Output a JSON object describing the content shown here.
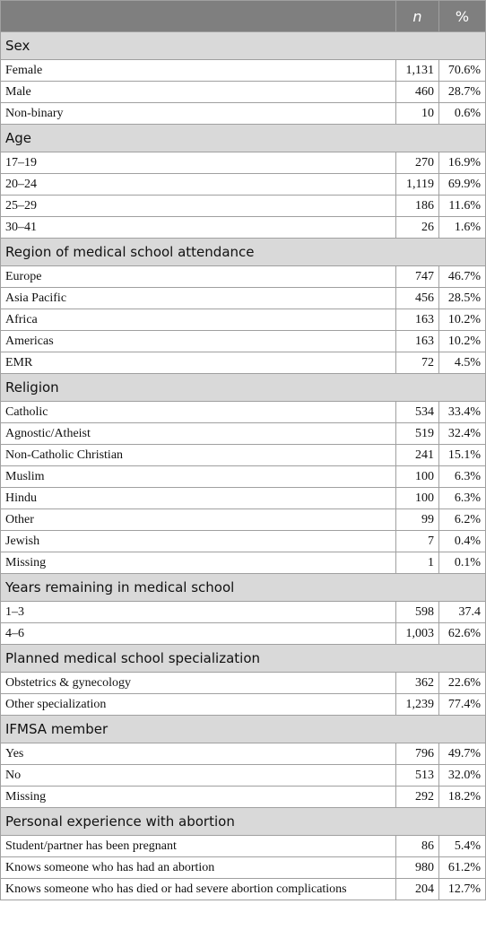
{
  "header": {
    "columns": [
      "n",
      "%"
    ]
  },
  "sections": [
    {
      "title": "Sex",
      "rows": [
        {
          "label": "Female",
          "n": "1,131",
          "pct": "70.6%"
        },
        {
          "label": "Male",
          "n": "460",
          "pct": "28.7%"
        },
        {
          "label": "Non-binary",
          "n": "10",
          "pct": "0.6%"
        }
      ]
    },
    {
      "title": "Age",
      "rows": [
        {
          "label": "17–19",
          "n": "270",
          "pct": "16.9%"
        },
        {
          "label": "20–24",
          "n": "1,119",
          "pct": "69.9%"
        },
        {
          "label": "25–29",
          "n": "186",
          "pct": "11.6%"
        },
        {
          "label": "30–41",
          "n": "26",
          "pct": "1.6%"
        }
      ]
    },
    {
      "title": "Region of medical school attendance",
      "rows": [
        {
          "label": "Europe",
          "n": "747",
          "pct": "46.7%"
        },
        {
          "label": "Asia Pacific",
          "n": "456",
          "pct": "28.5%"
        },
        {
          "label": "Africa",
          "n": "163",
          "pct": "10.2%"
        },
        {
          "label": "Americas",
          "n": "163",
          "pct": "10.2%"
        },
        {
          "label": "EMR",
          "n": "72",
          "pct": "4.5%"
        }
      ]
    },
    {
      "title": "Religion",
      "rows": [
        {
          "label": "Catholic",
          "n": "534",
          "pct": "33.4%"
        },
        {
          "label": "Agnostic/Atheist",
          "n": "519",
          "pct": "32.4%"
        },
        {
          "label": "Non-Catholic Christian",
          "n": "241",
          "pct": "15.1%"
        },
        {
          "label": "Muslim",
          "n": "100",
          "pct": "6.3%"
        },
        {
          "label": "Hindu",
          "n": "100",
          "pct": "6.3%"
        },
        {
          "label": "Other",
          "n": "99",
          "pct": "6.2%"
        },
        {
          "label": "Jewish",
          "n": "7",
          "pct": "0.4%"
        },
        {
          "label": "Missing",
          "n": "1",
          "pct": "0.1%"
        }
      ]
    },
    {
      "title": "Years remaining in medical school",
      "rows": [
        {
          "label": "1–3",
          "n": "598",
          "pct": "37.4"
        },
        {
          "label": "4–6",
          "n": "1,003",
          "pct": "62.6%"
        }
      ]
    },
    {
      "title": "Planned medical school specialization",
      "rows": [
        {
          "label": "Obstetrics & gynecology",
          "n": "362",
          "pct": "22.6%"
        },
        {
          "label": "Other specialization",
          "n": "1,239",
          "pct": "77.4%"
        }
      ]
    },
    {
      "title": "IFMSA member",
      "rows": [
        {
          "label": "Yes",
          "n": "796",
          "pct": "49.7%"
        },
        {
          "label": "No",
          "n": "513",
          "pct": "32.0%"
        },
        {
          "label": "Missing",
          "n": "292",
          "pct": "18.2%"
        }
      ]
    },
    {
      "title": "Personal experience with abortion",
      "rows": [
        {
          "label": "Student/partner has been pregnant",
          "n": "86",
          "pct": "5.4%"
        },
        {
          "label": "Knows someone who has had an abortion",
          "n": "980",
          "pct": "61.2%"
        },
        {
          "label": "Knows someone who has died or had severe abortion complications",
          "n": "204",
          "pct": "12.7%"
        }
      ]
    }
  ]
}
